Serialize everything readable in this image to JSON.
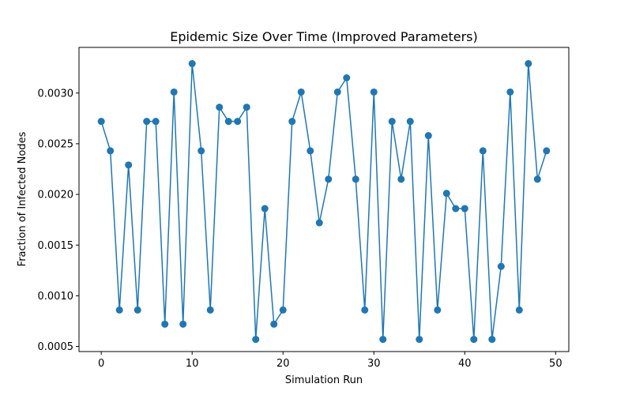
{
  "chart_data": {
    "type": "line",
    "title": "Epidemic Size Over Time (Improved Parameters)",
    "xlabel": "Simulation Run",
    "ylabel": "Fraction of Infected Nodes",
    "xlim": [
      -2.45,
      51.45
    ],
    "ylim": [
      0.00045,
      0.00345
    ],
    "xticks": [
      0,
      10,
      20,
      30,
      40,
      50
    ],
    "yticks": [
      0.0005,
      0.001,
      0.0015,
      0.002,
      0.0025,
      0.003
    ],
    "ytick_labels": [
      "0.0005",
      "0.0010",
      "0.0015",
      "0.0020",
      "0.0025",
      "0.0030"
    ],
    "grid": false,
    "marker": "circle",
    "color": "#1f77b4",
    "series": [
      {
        "x": [
          0,
          1,
          2,
          3,
          4,
          5,
          6,
          7,
          8,
          9,
          10,
          11,
          12,
          13,
          14,
          15,
          16,
          17,
          18,
          19,
          20,
          21,
          22,
          23,
          24,
          25,
          26,
          27,
          28,
          29,
          30,
          31,
          32,
          33,
          34,
          35,
          36,
          37,
          38,
          39,
          40,
          41,
          42,
          43,
          44,
          45,
          46,
          47,
          48,
          49
        ],
        "values": [
          0.00272,
          0.00243,
          0.00086,
          0.00229,
          0.00086,
          0.00272,
          0.00272,
          0.00072,
          0.00301,
          0.00072,
          0.00329,
          0.00243,
          0.00086,
          0.00286,
          0.00272,
          0.00272,
          0.00286,
          0.00057,
          0.00186,
          0.00072,
          0.00086,
          0.00272,
          0.00301,
          0.00243,
          0.00172,
          0.00215,
          0.00301,
          0.00315,
          0.00215,
          0.00086,
          0.00301,
          0.00057,
          0.00272,
          0.00215,
          0.00272,
          0.00057,
          0.00258,
          0.00086,
          0.00201,
          0.00186,
          0.00186,
          0.00057,
          0.00243,
          0.00057,
          0.00129,
          0.00301,
          0.00086,
          0.00329,
          0.00215,
          0.00243
        ]
      }
    ]
  }
}
